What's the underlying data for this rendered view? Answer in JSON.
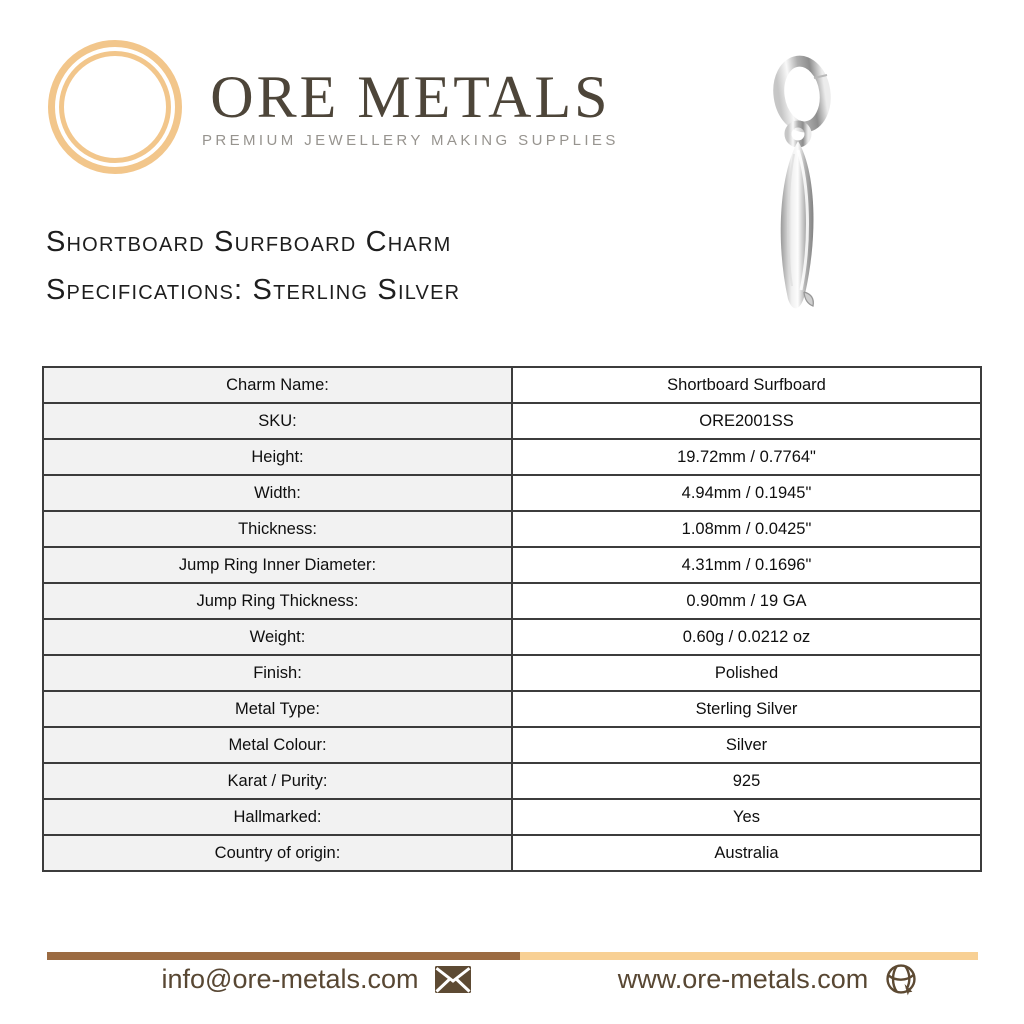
{
  "brand": {
    "name": "ORE METALS",
    "tagline": "PREMIUM JEWELLERY MAKING SUPPLIES",
    "logo_icon": "double-gold-ring-icon",
    "colors": {
      "gold": "#F2C68B",
      "brand_text": "#4D4539",
      "tagline_text": "#97948F"
    }
  },
  "product": {
    "photo": "silver-surfboard-charm-with-jump-ring",
    "title_line1": "Shortboard Surfboard Charm",
    "title_line2": "Specifications: Sterling Silver"
  },
  "spec_table": {
    "rows": [
      {
        "label": "Charm Name:",
        "value": "Shortboard Surfboard"
      },
      {
        "label": "SKU:",
        "value": "ORE2001SS"
      },
      {
        "label": "Height:",
        "value": "19.72mm / 0.7764\""
      },
      {
        "label": "Width:",
        "value": "4.94mm / 0.1945\""
      },
      {
        "label": "Thickness:",
        "value": "1.08mm / 0.0425\""
      },
      {
        "label": "Jump Ring Inner Diameter:",
        "value": "4.31mm / 0.1696\""
      },
      {
        "label": "Jump Ring Thickness:",
        "value": "0.90mm / 19 GA"
      },
      {
        "label": "Weight:",
        "value": "0.60g / 0.0212 oz"
      },
      {
        "label": "Finish:",
        "value": "Polished"
      },
      {
        "label": "Metal Type:",
        "value": "Sterling Silver"
      },
      {
        "label": "Metal Colour:",
        "value": "Silver"
      },
      {
        "label": "Karat / Purity:",
        "value": "925"
      },
      {
        "label": "Hallmarked:",
        "value": "Yes"
      },
      {
        "label": "Country of origin:",
        "value": "Australia"
      }
    ]
  },
  "footer": {
    "email": "info@ore-metals.com",
    "email_icon": "envelope-icon",
    "website": "www.ore-metals.com",
    "website_icon": "globe-icon",
    "divider": {
      "left_color": "#9B6B42",
      "right_color": "#F8D094"
    }
  }
}
